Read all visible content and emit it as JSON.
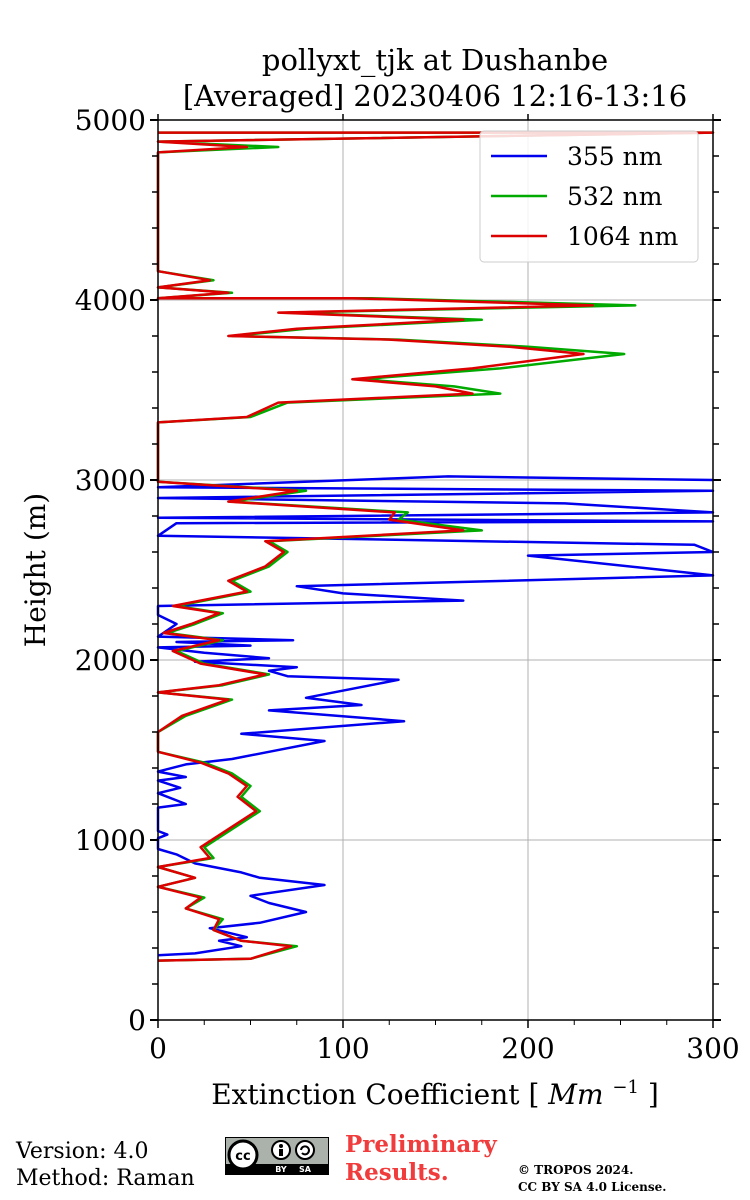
{
  "chart_data": {
    "type": "line",
    "title_line1": "pollyxt_tjk at Dushanbe",
    "title_line2": "[Averaged] 20230406 12:16-13:16",
    "xlabel": "Extinction Coefficient",
    "xlabel_unit": "Mm",
    "xlabel_exp": "−1",
    "ylabel": "Height (m)",
    "xlim": [
      0,
      300
    ],
    "ylim": [
      0,
      5000
    ],
    "x_ticks": [
      0,
      100,
      200,
      300
    ],
    "y_ticks": [
      0,
      1000,
      2000,
      3000,
      4000,
      5000
    ],
    "grid": true,
    "legend_position": "top-right",
    "series": [
      {
        "name": "355 nm",
        "color": "#0000ee",
        "points": [
          [
            0,
            360
          ],
          [
            20,
            370
          ],
          [
            45,
            410
          ],
          [
            33,
            440
          ],
          [
            48,
            460
          ],
          [
            28,
            510
          ],
          [
            55,
            540
          ],
          [
            80,
            600
          ],
          [
            60,
            650
          ],
          [
            50,
            690
          ],
          [
            90,
            750
          ],
          [
            55,
            790
          ],
          [
            45,
            820
          ],
          [
            20,
            870
          ],
          [
            10,
            920
          ],
          [
            0,
            950
          ],
          [
            0,
            1010
          ],
          [
            5,
            1030
          ],
          [
            0,
            1050
          ],
          [
            0,
            1180
          ],
          [
            15,
            1200
          ],
          [
            0,
            1260
          ],
          [
            12,
            1290
          ],
          [
            0,
            1330
          ],
          [
            15,
            1350
          ],
          [
            0,
            1380
          ],
          [
            15,
            1420
          ],
          [
            40,
            1450
          ],
          [
            60,
            1490
          ],
          [
            90,
            1550
          ],
          [
            45,
            1590
          ],
          [
            133,
            1660
          ],
          [
            60,
            1720
          ],
          [
            110,
            1750
          ],
          [
            80,
            1790
          ],
          [
            130,
            1890
          ],
          [
            70,
            1910
          ],
          [
            60,
            1940
          ],
          [
            75,
            1960
          ],
          [
            20,
            1990
          ],
          [
            60,
            2010
          ],
          [
            25,
            2040
          ],
          [
            0,
            2070
          ],
          [
            50,
            2080
          ],
          [
            10,
            2100
          ],
          [
            73,
            2110
          ],
          [
            0,
            2130
          ],
          [
            10,
            2200
          ],
          [
            0,
            2250
          ],
          [
            0,
            2300
          ],
          [
            165,
            2330
          ],
          [
            100,
            2370
          ],
          [
            75,
            2410
          ],
          [
            300,
            2470
          ],
          [
            200,
            2580
          ],
          [
            300,
            2600
          ],
          [
            290,
            2640
          ],
          [
            0,
            2690
          ],
          [
            10,
            2760
          ],
          [
            300,
            2770
          ],
          [
            0,
            2790
          ],
          [
            300,
            2820
          ],
          [
            220,
            2870
          ],
          [
            0,
            2900
          ],
          [
            300,
            2940
          ],
          [
            0,
            2960
          ],
          [
            157,
            3020
          ],
          [
            300,
            3000
          ]
        ]
      },
      {
        "name": "532 nm",
        "color": "#00aa00",
        "points": [
          [
            0,
            330
          ],
          [
            50,
            340
          ],
          [
            75,
            410
          ],
          [
            45,
            440
          ],
          [
            30,
            500
          ],
          [
            35,
            560
          ],
          [
            15,
            620
          ],
          [
            25,
            680
          ],
          [
            0,
            740
          ],
          [
            20,
            790
          ],
          [
            0,
            850
          ],
          [
            30,
            900
          ],
          [
            25,
            960
          ],
          [
            40,
            1060
          ],
          [
            55,
            1160
          ],
          [
            45,
            1240
          ],
          [
            50,
            1300
          ],
          [
            40,
            1370
          ],
          [
            25,
            1430
          ],
          [
            0,
            1490
          ],
          [
            0,
            1540
          ],
          [
            0,
            1600
          ],
          [
            15,
            1690
          ],
          [
            40,
            1780
          ],
          [
            0,
            1820
          ],
          [
            35,
            1860
          ],
          [
            60,
            1920
          ],
          [
            25,
            1980
          ],
          [
            10,
            2050
          ],
          [
            35,
            2110
          ],
          [
            5,
            2150
          ],
          [
            20,
            2200
          ],
          [
            35,
            2260
          ],
          [
            10,
            2300
          ],
          [
            50,
            2380
          ],
          [
            40,
            2440
          ],
          [
            60,
            2520
          ],
          [
            70,
            2600
          ],
          [
            60,
            2660
          ],
          [
            175,
            2720
          ],
          [
            130,
            2780
          ],
          [
            135,
            2820
          ],
          [
            40,
            2880
          ],
          [
            80,
            2940
          ],
          [
            0,
            2990
          ],
          [
            0,
            3320
          ],
          [
            50,
            3350
          ],
          [
            70,
            3430
          ],
          [
            185,
            3480
          ],
          [
            160,
            3520
          ],
          [
            110,
            3560
          ],
          [
            185,
            3620
          ],
          [
            252,
            3700
          ],
          [
            200,
            3740
          ],
          [
            130,
            3780
          ],
          [
            40,
            3800
          ],
          [
            80,
            3840
          ],
          [
            175,
            3890
          ],
          [
            70,
            3930
          ],
          [
            258,
            3970
          ],
          [
            115,
            4010
          ],
          [
            0,
            4010
          ],
          [
            40,
            4040
          ],
          [
            0,
            4070
          ],
          [
            30,
            4110
          ],
          [
            0,
            4160
          ],
          [
            0,
            4180
          ],
          [
            0,
            4820
          ],
          [
            65,
            4850
          ],
          [
            0,
            4880
          ],
          [
            300,
            4930
          ],
          [
            0,
            4930
          ]
        ]
      },
      {
        "name": "1064 nm",
        "color": "#dd0000",
        "points": [
          [
            0,
            330
          ],
          [
            50,
            340
          ],
          [
            72,
            410
          ],
          [
            45,
            440
          ],
          [
            30,
            500
          ],
          [
            33,
            560
          ],
          [
            15,
            620
          ],
          [
            23,
            680
          ],
          [
            0,
            740
          ],
          [
            20,
            790
          ],
          [
            0,
            850
          ],
          [
            28,
            900
          ],
          [
            23,
            960
          ],
          [
            38,
            1060
          ],
          [
            53,
            1160
          ],
          [
            43,
            1240
          ],
          [
            48,
            1300
          ],
          [
            38,
            1370
          ],
          [
            23,
            1430
          ],
          [
            0,
            1490
          ],
          [
            0,
            1540
          ],
          [
            0,
            1600
          ],
          [
            13,
            1690
          ],
          [
            38,
            1780
          ],
          [
            0,
            1820
          ],
          [
            33,
            1860
          ],
          [
            58,
            1920
          ],
          [
            23,
            1980
          ],
          [
            8,
            2050
          ],
          [
            33,
            2110
          ],
          [
            3,
            2150
          ],
          [
            18,
            2200
          ],
          [
            33,
            2260
          ],
          [
            8,
            2300
          ],
          [
            48,
            2380
          ],
          [
            38,
            2440
          ],
          [
            58,
            2520
          ],
          [
            68,
            2600
          ],
          [
            58,
            2660
          ],
          [
            165,
            2720
          ],
          [
            125,
            2780
          ],
          [
            128,
            2820
          ],
          [
            38,
            2880
          ],
          [
            75,
            2940
          ],
          [
            0,
            2990
          ],
          [
            0,
            3320
          ],
          [
            48,
            3350
          ],
          [
            65,
            3430
          ],
          [
            170,
            3480
          ],
          [
            150,
            3520
          ],
          [
            105,
            3560
          ],
          [
            170,
            3620
          ],
          [
            230,
            3700
          ],
          [
            190,
            3740
          ],
          [
            125,
            3780
          ],
          [
            38,
            3800
          ],
          [
            75,
            3840
          ],
          [
            165,
            3890
          ],
          [
            65,
            3930
          ],
          [
            235,
            3970
          ],
          [
            105,
            4010
          ],
          [
            0,
            4010
          ],
          [
            38,
            4040
          ],
          [
            0,
            4070
          ],
          [
            28,
            4110
          ],
          [
            0,
            4160
          ],
          [
            0,
            4180
          ],
          [
            0,
            4820
          ],
          [
            48,
            4850
          ],
          [
            0,
            4880
          ],
          [
            300,
            4930
          ],
          [
            0,
            4930
          ]
        ]
      }
    ]
  },
  "footer": {
    "version": "Version: 4.0",
    "method": "Method: Raman",
    "cc_label": "cc",
    "cc_by": "BY",
    "cc_sa": "SA",
    "preliminary_line1": "Preliminary",
    "preliminary_line2": "Results.",
    "copyright_line1": "© TROPOS 2024.",
    "copyright_line2": "CC BY SA 4.0 License."
  }
}
